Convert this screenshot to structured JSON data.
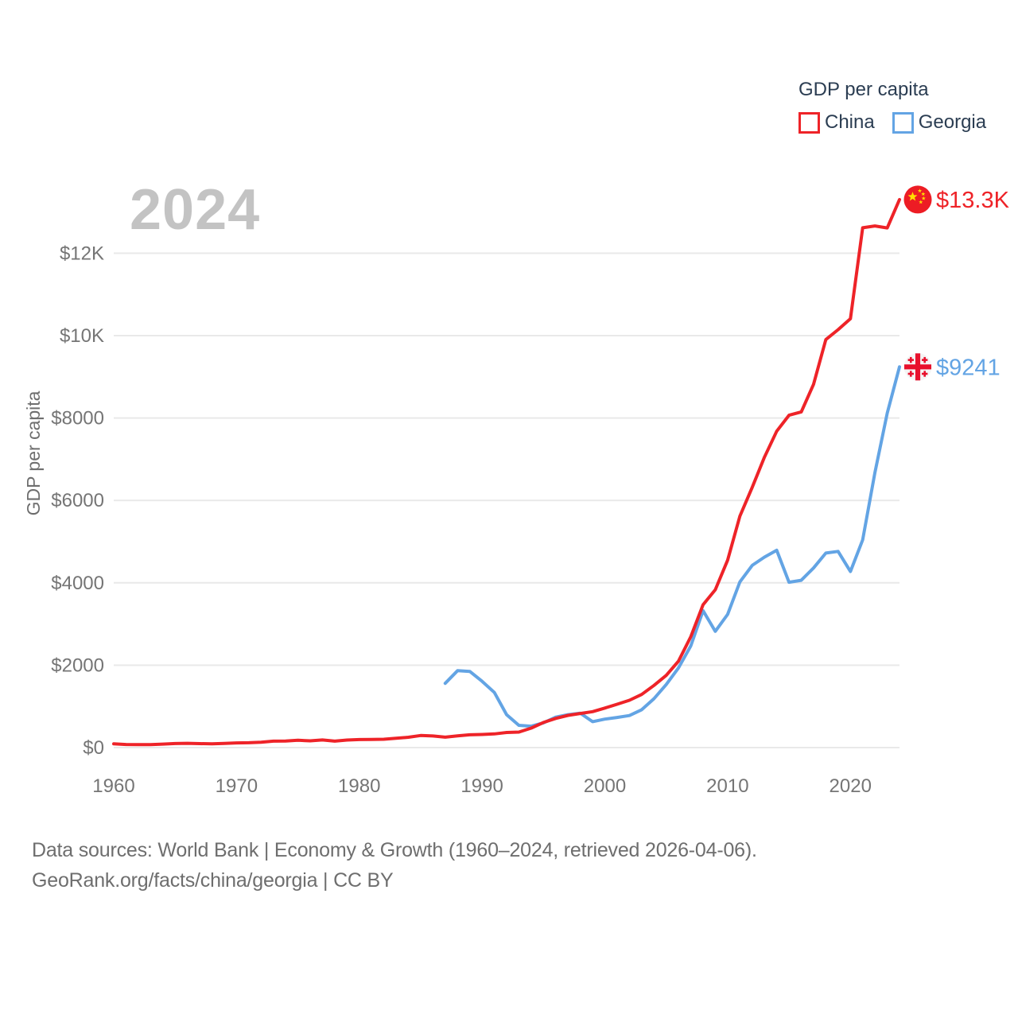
{
  "watermark": "2024",
  "legend": {
    "title": "GDP per capita",
    "items": [
      {
        "label": "China",
        "color": "#ee2328"
      },
      {
        "label": "Georgia",
        "color": "#63a4e4"
      }
    ]
  },
  "footer": {
    "line1": "Data sources: World Bank | Economy & Growth (1960–2024, retrieved 2026-04-06).",
    "line2": "GeoRank.org/facts/china/georgia | CC BY"
  },
  "chart_data": {
    "type": "line",
    "title": "GDP per capita",
    "watermark_year": "2024",
    "xlabel": "",
    "ylabel": "GDP per capita",
    "x_range": [
      1960,
      2024
    ],
    "y_range": [
      0,
      13500
    ],
    "grid": "horizontal",
    "legend_position": "top-right",
    "x_ticks": [
      1960,
      1970,
      1980,
      1990,
      2000,
      2010,
      2020
    ],
    "y_ticks": [
      {
        "value": 0,
        "label": "$0"
      },
      {
        "value": 2000,
        "label": "$2000"
      },
      {
        "value": 4000,
        "label": "$4000"
      },
      {
        "value": 6000,
        "label": "$6000"
      },
      {
        "value": 8000,
        "label": "$8000"
      },
      {
        "value": 10000,
        "label": "$10K"
      },
      {
        "value": 12000,
        "label": "$12K"
      }
    ],
    "series": [
      {
        "name": "Georgia",
        "color": "#63a4e4",
        "flag": "georgia",
        "end_label": "$9241",
        "end_value": 9241,
        "start_year": 1987,
        "values": [
          1560,
          1866,
          1850,
          1611,
          1338,
          800,
          540,
          520,
          600,
          740,
          800,
          836,
          629,
          692,
          732,
          778,
          919,
          1188,
          1530,
          1935,
          2470,
          3325,
          2823,
          3233,
          4022,
          4422,
          4623,
          4789,
          4014,
          4062,
          4359,
          4722,
          4763,
          4274,
          5042,
          6675,
          8120,
          9241
        ]
      },
      {
        "name": "China",
        "color": "#ee2328",
        "flag": "china",
        "end_label": "$13.3K",
        "end_value": 13303,
        "start_year": 1960,
        "values": [
          90,
          76,
          71,
          74,
          85,
          98,
          104,
          97,
          91,
          100,
          113,
          118,
          131,
          157,
          160,
          178,
          165,
          185,
          156,
          184,
          195,
          197,
          203,
          225,
          251,
          294,
          282,
          252,
          284,
          311,
          318,
          333,
          366,
          377,
          473,
          610,
          709,
          782,
          829,
          873,
          959,
          1053,
          1149,
          1289,
          1509,
          1753,
          2099,
          2694,
          3468,
          3832,
          4550,
          5618,
          6317,
          7051,
          7679,
          8067,
          8148,
          8817,
          9905,
          10144,
          10409,
          12618,
          12663,
          12614,
          13303
        ]
      }
    ]
  }
}
